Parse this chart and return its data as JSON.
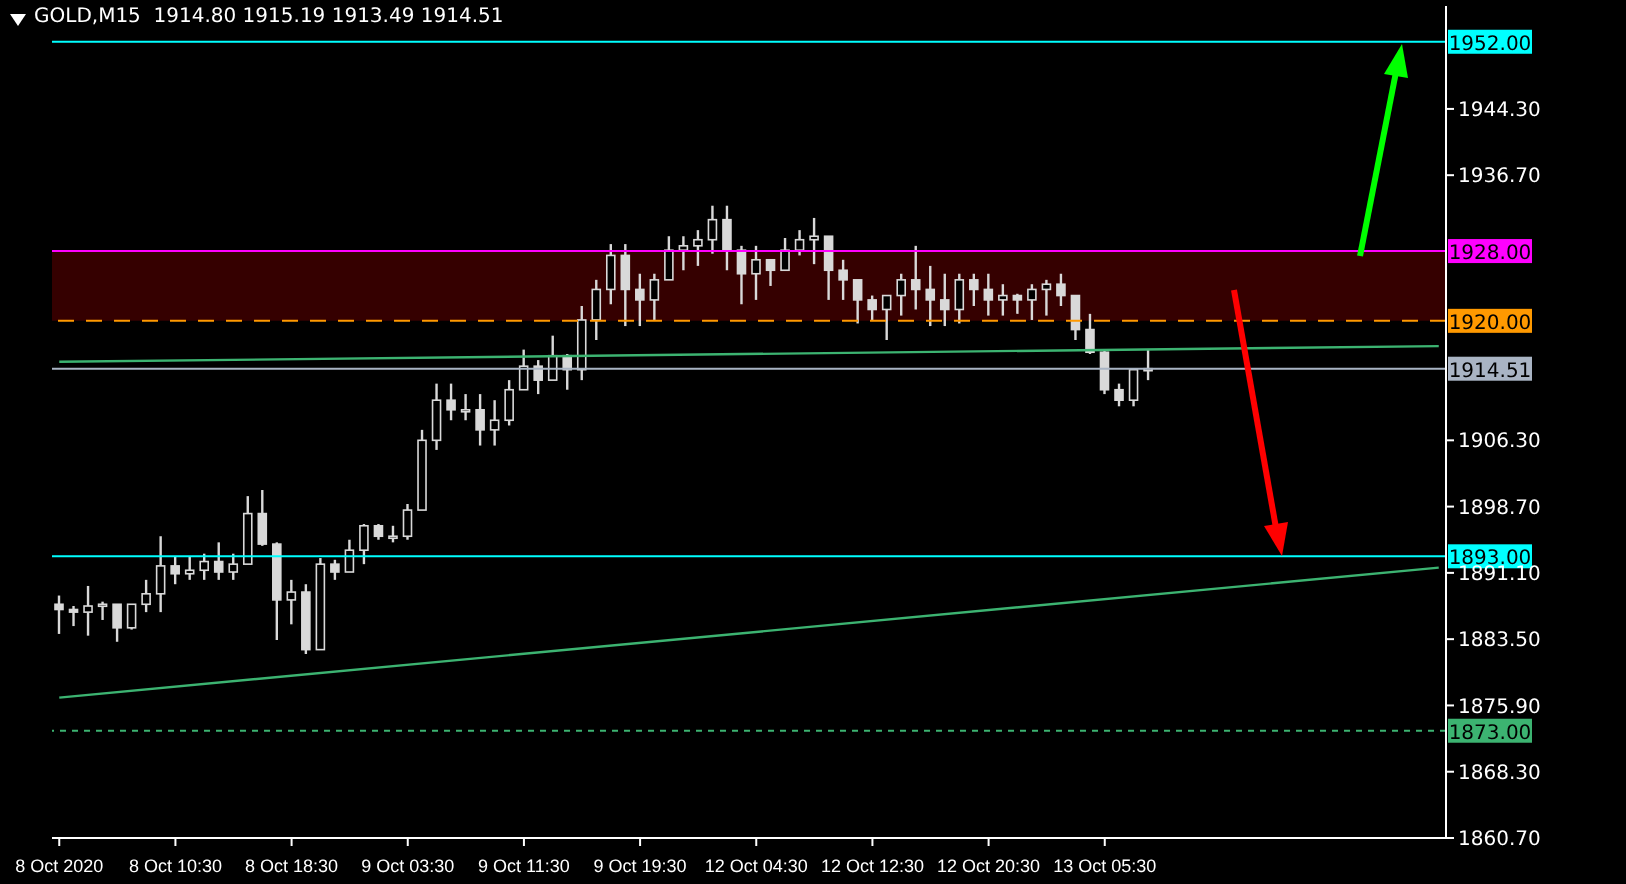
{
  "chart_data": {
    "type": "candlestick",
    "title": "GOLD,M15  1914.80 1915.19 1913.49 1914.51",
    "color": "#d9d9d9",
    "categories": [
      "8 Oct 2020",
      null,
      null,
      null,
      null,
      null,
      null,
      null,
      "8 Oct 10:30",
      null,
      null,
      null,
      null,
      null,
      null,
      null,
      "8 Oct 18:30",
      null,
      null,
      null,
      null,
      null,
      null,
      null,
      "9 Oct 03:30",
      null,
      null,
      null,
      null,
      null,
      null,
      null,
      "9 Oct 11:30",
      null,
      null,
      null,
      null,
      null,
      null,
      null,
      "9 Oct 19:30",
      null,
      null,
      null,
      null,
      null,
      null,
      null,
      "12 Oct 04:30",
      null,
      null,
      null,
      null,
      null,
      null,
      null,
      "12 Oct 12:30",
      null,
      null,
      null,
      null,
      null,
      null,
      null,
      "12 Oct 20:30",
      null,
      null,
      null,
      null,
      null,
      null,
      null,
      "13 Oct 05:30",
      null,
      null,
      null,
      null,
      null,
      null,
      null,
      null,
      null,
      null,
      null,
      null,
      null,
      null,
      null,
      null,
      null,
      null,
      null,
      null,
      null,
      null,
      null
    ],
    "ohlc": [
      [
        1887.5,
        1888.5,
        1884.1,
        1886.9
      ],
      [
        1886.9,
        1887.3,
        1885.0,
        1886.6
      ],
      [
        1886.6,
        1889.6,
        1883.9,
        1887.3
      ],
      [
        1887.3,
        1887.8,
        1885.7,
        1887.5
      ],
      [
        1887.5,
        1887.5,
        1883.2,
        1884.8
      ],
      [
        1884.8,
        1887.5,
        1884.6,
        1887.5
      ],
      [
        1887.5,
        1890.3,
        1886.6,
        1888.7
      ],
      [
        1888.7,
        1895.3,
        1886.6,
        1891.9
      ],
      [
        1891.9,
        1893.0,
        1889.8,
        1891.0
      ],
      [
        1891.0,
        1893.0,
        1890.3,
        1891.4
      ],
      [
        1891.4,
        1893.3,
        1890.3,
        1892.4
      ],
      [
        1892.4,
        1894.6,
        1890.3,
        1891.2
      ],
      [
        1891.2,
        1893.3,
        1890.3,
        1892.1
      ],
      [
        1892.1,
        1899.9,
        1892.1,
        1897.9
      ],
      [
        1897.9,
        1900.6,
        1894.2,
        1894.4
      ],
      [
        1894.4,
        1894.6,
        1883.4,
        1888.0
      ],
      [
        1888.0,
        1890.3,
        1885.2,
        1888.9
      ],
      [
        1888.9,
        1889.8,
        1881.8,
        1882.3
      ],
      [
        1882.3,
        1892.8,
        1882.3,
        1892.1
      ],
      [
        1892.1,
        1892.6,
        1890.3,
        1891.2
      ],
      [
        1891.2,
        1894.9,
        1891.2,
        1893.7
      ],
      [
        1893.7,
        1896.7,
        1892.1,
        1896.5
      ],
      [
        1896.5,
        1896.7,
        1894.9,
        1895.3
      ],
      [
        1895.3,
        1896.5,
        1894.6,
        1895.3
      ],
      [
        1895.3,
        1899.0,
        1894.9,
        1898.3
      ],
      [
        1898.3,
        1907.5,
        1898.3,
        1906.3
      ],
      [
        1906.3,
        1912.8,
        1905.2,
        1910.9
      ],
      [
        1910.9,
        1912.8,
        1908.6,
        1909.8
      ],
      [
        1909.8,
        1911.6,
        1908.6,
        1909.8
      ],
      [
        1909.8,
        1911.6,
        1905.7,
        1907.5
      ],
      [
        1907.5,
        1910.9,
        1905.7,
        1908.6
      ],
      [
        1908.6,
        1913.2,
        1908.0,
        1912.1
      ],
      [
        1912.1,
        1916.7,
        1912.1,
        1914.8
      ],
      [
        1914.8,
        1915.5,
        1911.6,
        1913.2
      ],
      [
        1913.2,
        1918.3,
        1913.2,
        1916.0
      ],
      [
        1916.0,
        1916.2,
        1912.1,
        1914.4
      ],
      [
        1914.4,
        1921.7,
        1913.2,
        1920.1
      ],
      [
        1920.1,
        1924.7,
        1917.8,
        1923.6
      ],
      [
        1923.6,
        1928.8,
        1921.9,
        1927.5
      ],
      [
        1927.5,
        1928.8,
        1919.4,
        1923.6
      ],
      [
        1923.6,
        1925.4,
        1919.4,
        1922.4
      ],
      [
        1922.4,
        1925.4,
        1920.1,
        1924.7
      ],
      [
        1924.7,
        1929.7,
        1924.7,
        1928.1
      ],
      [
        1928.1,
        1929.7,
        1925.8,
        1928.6
      ],
      [
        1928.6,
        1930.4,
        1926.3,
        1929.3
      ],
      [
        1929.3,
        1933.2,
        1927.7,
        1931.6
      ],
      [
        1931.6,
        1933.2,
        1925.8,
        1928.1
      ],
      [
        1928.1,
        1928.6,
        1921.9,
        1925.4
      ],
      [
        1925.4,
        1928.6,
        1922.4,
        1927.0
      ],
      [
        1927.0,
        1927.0,
        1924.0,
        1925.8
      ],
      [
        1925.8,
        1929.5,
        1925.8,
        1928.1
      ],
      [
        1928.1,
        1930.4,
        1927.5,
        1929.3
      ],
      [
        1929.3,
        1931.8,
        1926.5,
        1929.7
      ],
      [
        1929.7,
        1929.7,
        1922.4,
        1925.8
      ],
      [
        1925.8,
        1927.0,
        1922.4,
        1924.7
      ],
      [
        1924.7,
        1924.7,
        1919.7,
        1922.4
      ],
      [
        1922.4,
        1922.9,
        1920.1,
        1921.3
      ],
      [
        1921.3,
        1922.9,
        1917.8,
        1922.9
      ],
      [
        1922.9,
        1925.4,
        1920.6,
        1924.7
      ],
      [
        1924.7,
        1928.6,
        1921.3,
        1923.6
      ],
      [
        1923.6,
        1926.3,
        1919.4,
        1922.4
      ],
      [
        1922.4,
        1925.4,
        1919.4,
        1921.3
      ],
      [
        1921.3,
        1925.4,
        1919.7,
        1924.7
      ],
      [
        1924.7,
        1925.4,
        1921.7,
        1923.6
      ],
      [
        1923.6,
        1925.4,
        1920.6,
        1922.4
      ],
      [
        1922.4,
        1924.2,
        1920.6,
        1922.9
      ],
      [
        1922.9,
        1923.1,
        1920.8,
        1922.4
      ],
      [
        1922.4,
        1924.2,
        1920.1,
        1923.6
      ],
      [
        1923.6,
        1924.7,
        1920.6,
        1924.2
      ],
      [
        1924.2,
        1925.4,
        1921.7,
        1922.9
      ],
      [
        1922.9,
        1922.9,
        1917.8,
        1919.0
      ],
      [
        1919.0,
        1920.8,
        1916.2,
        1916.4
      ],
      [
        1916.4,
        1916.7,
        1911.6,
        1912.1
      ],
      [
        1912.1,
        1912.8,
        1910.2,
        1910.9
      ],
      [
        1910.9,
        1914.4,
        1910.2,
        1914.4
      ],
      [
        1914.4,
        1916.7,
        1913.2,
        1914.51
      ],
      null,
      null,
      null,
      null,
      null,
      null,
      null,
      null,
      null,
      null,
      null,
      null,
      null,
      null,
      null,
      null,
      null,
      null,
      null,
      null
    ],
    "series": [
      {
        "type": "line",
        "color": "#3cb371",
        "values": [
          1876.8,
          null,
          null,
          null,
          null,
          null,
          null,
          null,
          null,
          null,
          null,
          null,
          null,
          null,
          null,
          null,
          null,
          null,
          null,
          null,
          null,
          null,
          null,
          null,
          null,
          null,
          null,
          null,
          null,
          null,
          null,
          null,
          null,
          null,
          null,
          null,
          null,
          null,
          null,
          null,
          null,
          null,
          null,
          null,
          null,
          null,
          null,
          null,
          null,
          null,
          null,
          null,
          null,
          null,
          null,
          null,
          null,
          null,
          null,
          null,
          null,
          null,
          null,
          null,
          null,
          null,
          null,
          null,
          null,
          null,
          null,
          null,
          null,
          null,
          null,
          null,
          null,
          null,
          null,
          null,
          null,
          null,
          null,
          null,
          null,
          null,
          null,
          null,
          null,
          null,
          null,
          null,
          null,
          null,
          null,
          1891.7
        ]
      },
      {
        "type": "line",
        "color": "#3cb371",
        "values": [
          1915.3,
          null,
          null,
          null,
          null,
          null,
          null,
          null,
          null,
          null,
          null,
          null,
          null,
          null,
          null,
          null,
          null,
          null,
          null,
          null,
          null,
          null,
          null,
          null,
          null,
          null,
          null,
          null,
          null,
          null,
          null,
          null,
          null,
          null,
          null,
          null,
          null,
          null,
          null,
          null,
          null,
          null,
          null,
          null,
          null,
          null,
          null,
          null,
          null,
          null,
          null,
          null,
          null,
          null,
          null,
          null,
          null,
          null,
          null,
          null,
          null,
          null,
          null,
          null,
          null,
          null,
          null,
          null,
          null,
          null,
          null,
          null,
          null,
          null,
          null,
          null,
          null,
          null,
          null,
          null,
          null,
          null,
          null,
          null,
          null,
          null,
          null,
          null,
          null,
          null,
          null,
          null,
          null,
          null,
          null,
          1917.1
        ]
      }
    ],
    "ylim": [
      1860.7,
      1956.1
    ],
    "yticks": [
      {
        "value": 1944.3,
        "label": "1944.30"
      },
      {
        "value": 1936.7,
        "label": "1936.70"
      },
      {
        "value": 1906.3,
        "label": "1906.30"
      },
      {
        "value": 1898.7,
        "label": "1898.70"
      },
      {
        "value": 1891.1,
        "label": "1891.10"
      },
      {
        "value": 1883.5,
        "label": "1883.50"
      },
      {
        "value": 1875.9,
        "label": "1875.90"
      },
      {
        "value": 1868.3,
        "label": "1868.30"
      },
      {
        "value": 1860.7,
        "label": "1860.70"
      }
    ],
    "ref_lines": [
      {
        "axis": "y",
        "value": 1952,
        "label": "1952.00",
        "color": "#00ffff"
      },
      {
        "axis": "y",
        "value": 1928,
        "label": "1928.00",
        "color": "#ff00ff"
      },
      {
        "axis": "y",
        "value": 1920,
        "label": "1920.00",
        "color": "#ff9900",
        "line_style": "dashed"
      },
      {
        "axis": "y",
        "value": 1914.51,
        "label": "1914.51",
        "color": "#a9b4c4"
      },
      {
        "axis": "y",
        "value": 1893,
        "label": "1893.00",
        "color": "#00ffff"
      },
      {
        "axis": "y",
        "value": 1873,
        "label": "1873.00",
        "color": "#3cb371",
        "line_style": "dotted"
      }
    ],
    "bands": [
      {
        "axis": "y",
        "from": 1920,
        "to": 1928,
        "color": "#4a0000"
      }
    ],
    "legend": false,
    "grid": false
  }
}
